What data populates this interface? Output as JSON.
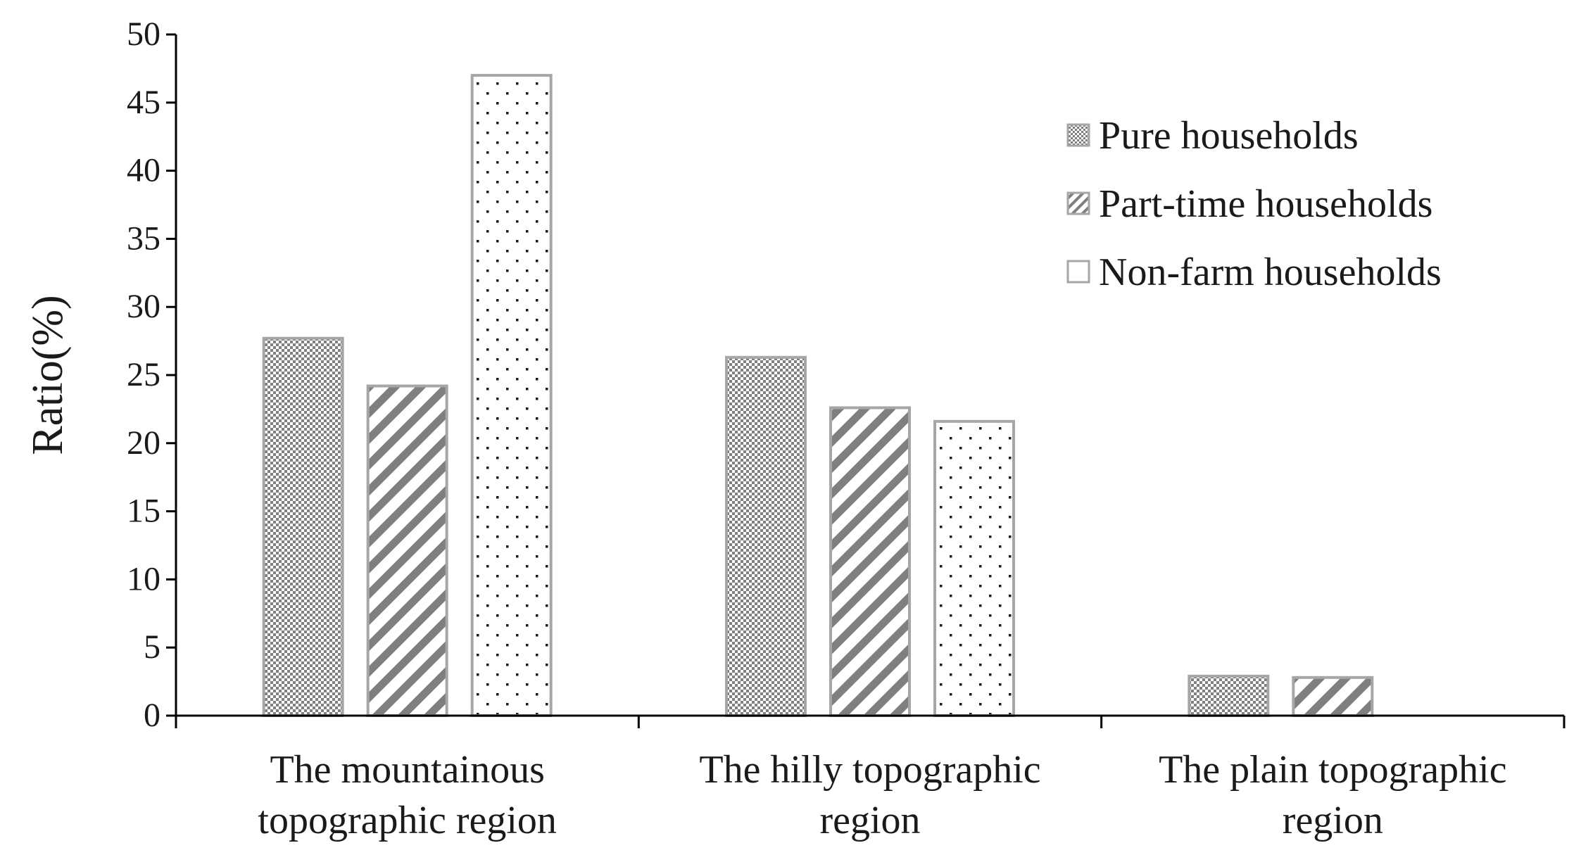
{
  "chart_data": {
    "type": "bar",
    "title": "",
    "xlabel": "",
    "ylabel": "Ratio(%)",
    "ylim": [
      0,
      50
    ],
    "yticks": [
      0,
      5,
      10,
      15,
      20,
      25,
      30,
      35,
      40,
      45,
      50
    ],
    "grid": false,
    "legend_position": "top-right",
    "categories": [
      [
        "The mountainous",
        "topographic region"
      ],
      [
        "The hilly topographic",
        "region"
      ],
      [
        "The plain topographic",
        "region"
      ]
    ],
    "series": [
      {
        "name": "Pure households",
        "pattern": "checker",
        "values": [
          27.7,
          26.3,
          2.9
        ]
      },
      {
        "name": "Part-time households",
        "pattern": "diagonal",
        "values": [
          24.2,
          22.6,
          2.8
        ]
      },
      {
        "name": "Non-farm households",
        "pattern": "dots",
        "values": [
          47.0,
          21.6,
          0
        ]
      }
    ],
    "colors": {
      "bar_edge": "#a6a6a6",
      "fill_dark": "#7f7f7f",
      "dot": "#1a1a1a",
      "axis": "#000000"
    }
  }
}
